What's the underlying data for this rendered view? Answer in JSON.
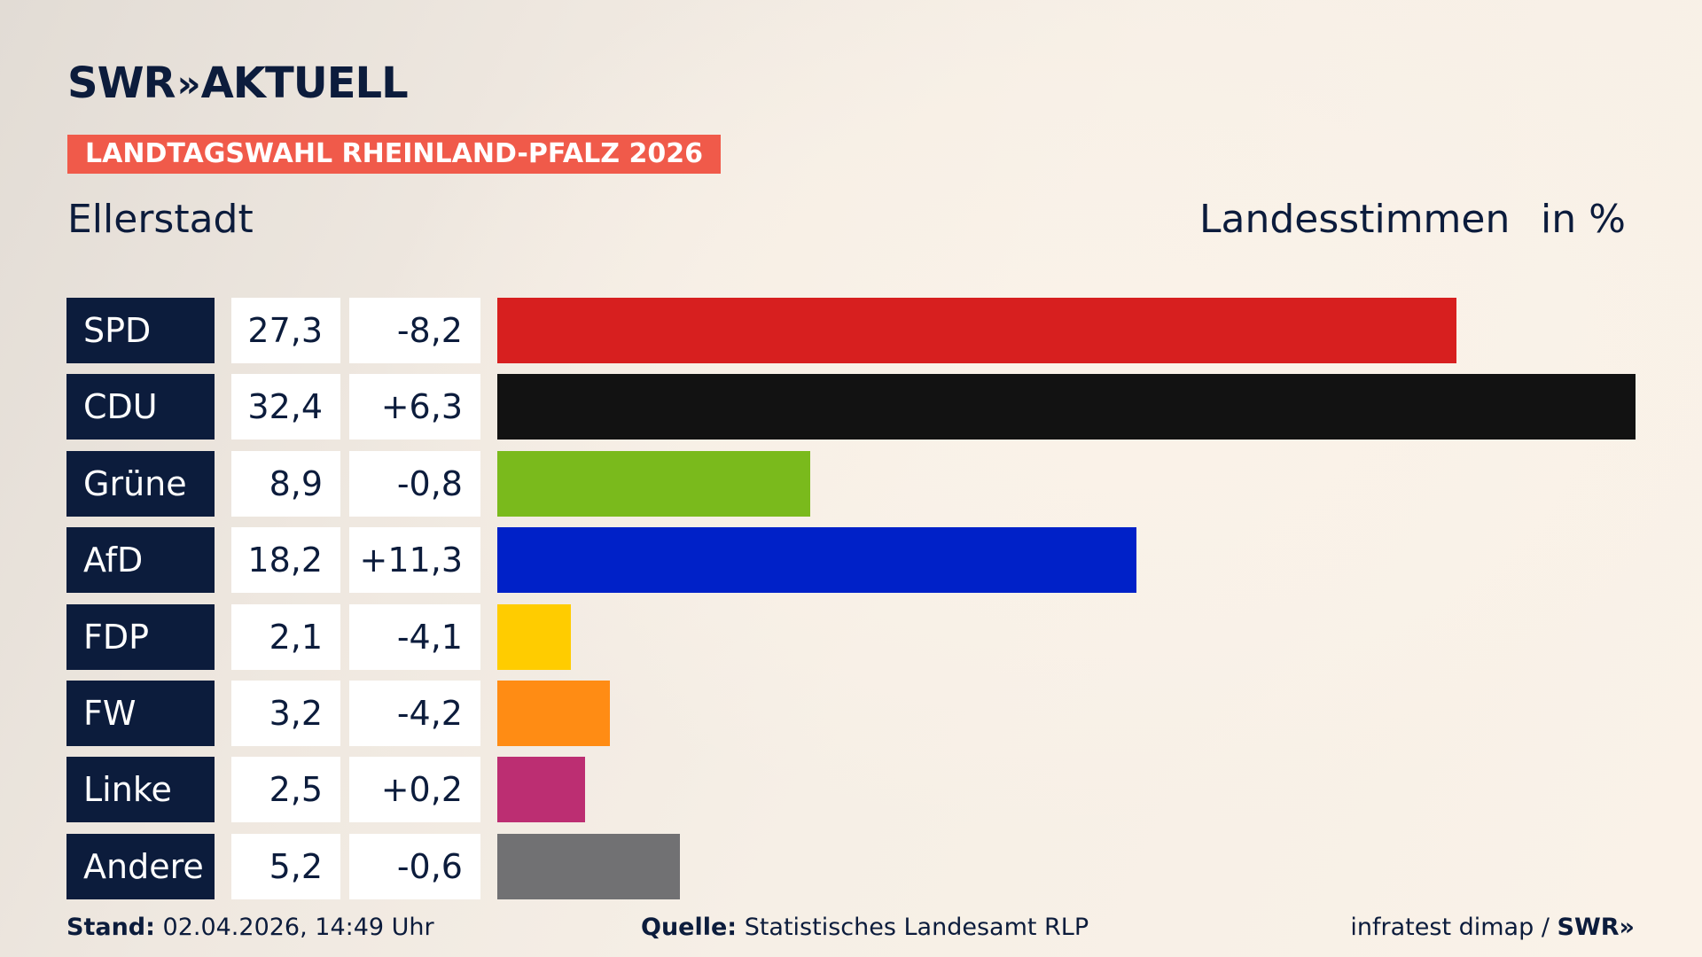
{
  "header": {
    "logo_text": "SWR",
    "logo_chevrons": "»",
    "logo_suffix": "AKTUELL",
    "banner": "LANDTAGSWAHL RHEINLAND-PFALZ 2026",
    "place": "Ellerstadt",
    "measure": "Landesstimmen",
    "unit": "in %"
  },
  "chart_data": {
    "type": "bar",
    "orientation": "horizontal",
    "categories": [
      "SPD",
      "CDU",
      "Grüne",
      "AfD",
      "FDP",
      "FW",
      "Linke",
      "Andere"
    ],
    "values": [
      27.3,
      32.4,
      8.9,
      18.2,
      2.1,
      3.2,
      2.5,
      5.2
    ],
    "value_labels": [
      "27,3",
      "32,4",
      "8,9",
      "18,2",
      "2,1",
      "3,2",
      "2,5",
      "5,2"
    ],
    "diff_labels": [
      "-8,2",
      "+6,3",
      "-0,8",
      "+11,3",
      "-4,1",
      "-4,2",
      "+0,2",
      "-0,6"
    ],
    "colors": [
      "#d71f1f",
      "#121212",
      "#7aba1c",
      "#0021c8",
      "#ffcc00",
      "#ff8c14",
      "#bc2e72",
      "#717173"
    ],
    "xlim": [
      0,
      32.4
    ],
    "grid": false,
    "legend": "none"
  },
  "footer": {
    "stand_label": "Stand:",
    "stand_value": "02.04.2026, 14:49 Uhr",
    "source_label": "Quelle:",
    "source_value": "Statistisches Landesamt RLP",
    "credit": "infratest dimap / ",
    "credit_brand": "SWR",
    "credit_chevrons": "»"
  }
}
